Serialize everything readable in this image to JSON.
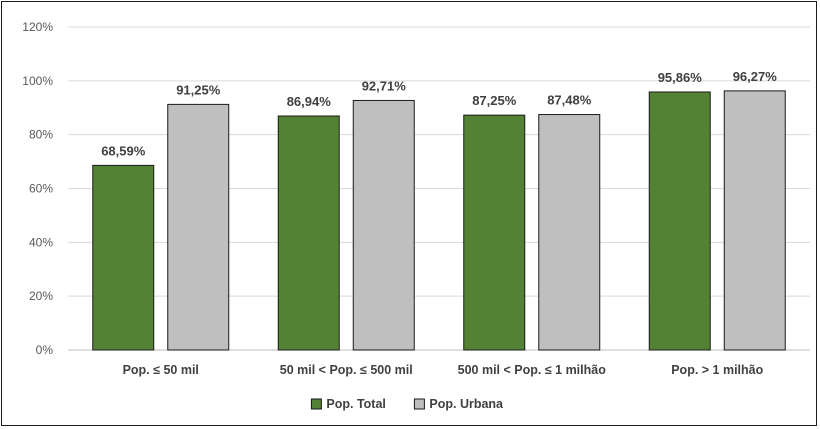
{
  "chart_data": {
    "type": "bar",
    "categories": [
      "Pop. ≤ 50 mil",
      "50 mil < Pop. ≤ 500 mil",
      "500 mil < Pop. ≤ 1 milhão",
      "Pop. > 1 milhão"
    ],
    "series": [
      {
        "name": "Pop. Total",
        "color": "#548235",
        "values": [
          68.59,
          86.94,
          87.25,
          95.86
        ],
        "labels": [
          "68,59%",
          "86,94%",
          "87,25%",
          "95,86%"
        ]
      },
      {
        "name": "Pop. Urbana",
        "color": "#bfbfbf",
        "values": [
          91.25,
          92.71,
          87.48,
          96.27
        ],
        "labels": [
          "91,25%",
          "92,71%",
          "87,48%",
          "96,27%"
        ]
      }
    ],
    "ylim": [
      0,
      120
    ],
    "yticks": [
      0,
      20,
      40,
      60,
      80,
      100,
      120
    ],
    "ytick_labels": [
      "0%",
      "20%",
      "40%",
      "60%",
      "80%",
      "100%",
      "120%"
    ],
    "grid": true,
    "legend_position": "bottom",
    "title": "",
    "xlabel": "",
    "ylabel": ""
  }
}
